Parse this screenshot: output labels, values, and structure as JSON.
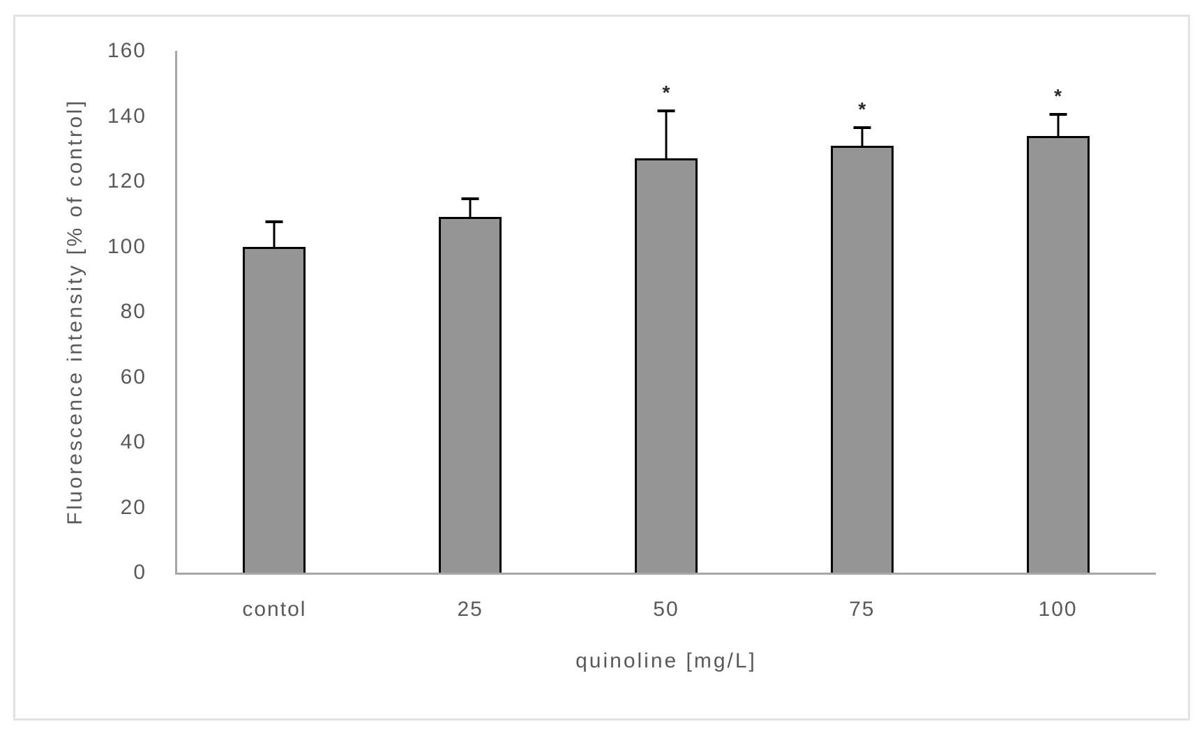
{
  "figure": {
    "background": "#ffffff",
    "frame_border_color": "#e2e2e2"
  },
  "chart_data": {
    "type": "bar",
    "title": "",
    "xlabel": "quinoline [mg/L]",
    "ylabel": "Fluorescence intensity [% of control]",
    "categories": [
      "contol",
      "25",
      "50",
      "75",
      "100"
    ],
    "values": [
      100,
      109,
      127,
      131,
      134
    ],
    "error_plus": [
      8,
      6,
      15,
      6,
      7
    ],
    "significance": [
      "",
      "",
      "*",
      "*",
      "*"
    ],
    "ylim": [
      0,
      160
    ],
    "ytick_step": 20,
    "ytick_labels": [
      "0",
      "20",
      "40",
      "60",
      "80",
      "100",
      "120",
      "140",
      "160"
    ],
    "grid": false,
    "legend": false,
    "bar_fill_color": "#959595",
    "bar_border_color": "#000000",
    "error_bar_color": "#000000",
    "axis_line_color": "#a6a6a6",
    "text_color": "#595959",
    "significance_color": "#2a2a2a"
  }
}
